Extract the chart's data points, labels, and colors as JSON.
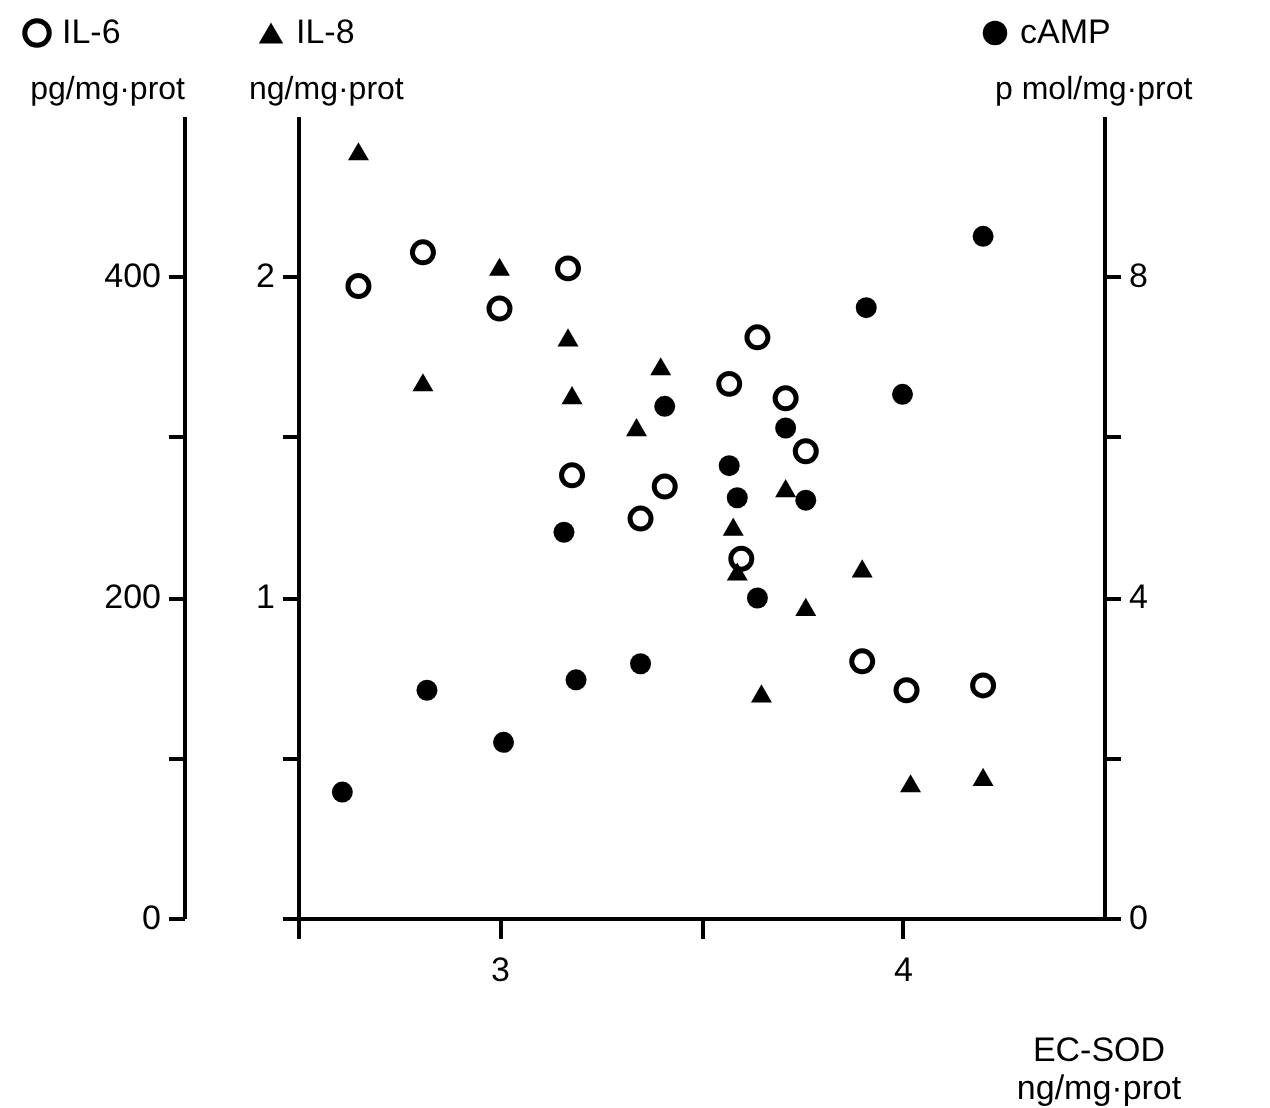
{
  "chart_data": {
    "type": "scatter",
    "xlabel": "EC-SOD ng/mg·prot",
    "ylabel": "pg/mg·prot",
    "y2label": "ng/mg·prot",
    "y3label": "p mol/mg·prot",
    "xlim": [
      2.5,
      4.5
    ],
    "xticks": [
      {
        "value": 2.5,
        "label": null
      },
      3,
      {
        "value": 3.5,
        "label": null
      },
      4
    ],
    "ylim": [
      0,
      500
    ],
    "yticks": [
      0,
      {
        "value": 100,
        "label": null
      },
      200,
      {
        "value": 300,
        "label": null
      },
      400
    ],
    "y2lim": [
      0,
      2.5
    ],
    "y2ticks": [
      {
        "value": 0,
        "label": null
      },
      {
        "value": 0.5,
        "label": null
      },
      1,
      {
        "value": 1.5,
        "label": null
      },
      2
    ],
    "y3lim": [
      0,
      10
    ],
    "y3ticks": [
      0,
      {
        "value": 2,
        "label": null
      },
      4,
      {
        "value": 6,
        "label": null
      },
      8
    ],
    "grid": false,
    "legend": "top",
    "series": [
      {
        "name": "IL-6",
        "color": "#000000",
        "marker": "circle",
        "axis": "y",
        "x": [
          2.65,
          2.81,
          3.0,
          3.17,
          3.18,
          3.35,
          3.41,
          3.64,
          3.57,
          3.71,
          3.76,
          3.6,
          3.9,
          4.01,
          4.2
        ],
        "values": [
          394,
          415,
          380,
          405,
          276,
          249,
          269,
          362,
          333,
          324,
          291,
          224,
          160,
          142,
          145
        ]
      },
      {
        "name": "IL-8",
        "color": "#000000",
        "marker": "triangle",
        "axis": "y2",
        "x": [
          2.65,
          2.81,
          3.0,
          3.17,
          3.18,
          3.34,
          3.4,
          3.71,
          3.58,
          3.59,
          3.9,
          3.76,
          3.65,
          4.02,
          4.2
        ],
        "values": [
          2.39,
          1.67,
          2.03,
          1.81,
          1.63,
          1.53,
          1.72,
          1.34,
          1.22,
          1.08,
          1.09,
          0.97,
          0.7,
          0.42,
          0.44
        ]
      },
      {
        "name": "cAMP",
        "color": "#000000",
        "marker": "circle",
        "axis": "y3",
        "x": [
          2.61,
          2.82,
          3.01,
          3.19,
          3.16,
          3.35,
          3.41,
          3.57,
          3.59,
          3.71,
          3.76,
          3.91,
          4.0,
          4.2,
          3.64
        ],
        "values": [
          1.57,
          2.84,
          2.19,
          2.97,
          4.81,
          3.17,
          6.38,
          5.64,
          5.24,
          6.11,
          5.21,
          7.61,
          6.53,
          8.5,
          3.99
        ]
      }
    ]
  }
}
